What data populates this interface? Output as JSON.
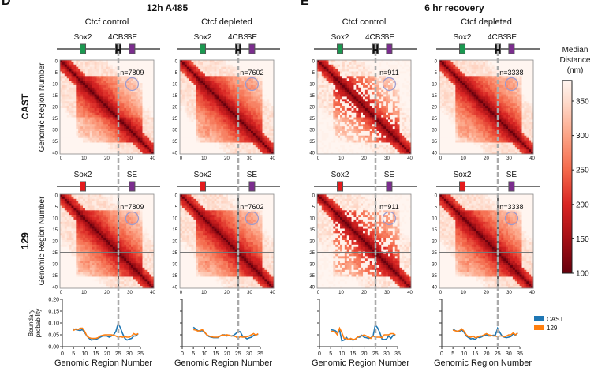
{
  "panel_letters": {
    "left": "D",
    "right": "E"
  },
  "group_titles": {
    "left": "12h A485",
    "right": "6 hr recovery"
  },
  "columns": [
    {
      "condition": "Ctcf control",
      "group": "12h A485",
      "n": "n=7809"
    },
    {
      "condition": "Ctcf depleted",
      "group": "12h A485",
      "n": "n=7602"
    },
    {
      "condition": "Ctcf control",
      "group": "6 hr recovery",
      "n": "n=911"
    },
    {
      "condition": "Ctcf depleted",
      "group": "6 hr recovery",
      "n": "n=3338"
    }
  ],
  "row_labels": {
    "cast": "CAST",
    "g129": "129"
  },
  "heatmap_ylabel": "Genomic Region Number",
  "tracks": {
    "cast": [
      {
        "label": "Sox2",
        "region": 9.5,
        "color": "#1a9850"
      },
      {
        "label": "4CBS",
        "region": 25,
        "color": "#111111"
      },
      {
        "label": "SE",
        "region": 31,
        "color": "#7b2d8e"
      }
    ],
    "g129": [
      {
        "label": "Sox2",
        "region": 9.5,
        "color": "#e41a1c"
      },
      {
        "label": "SE",
        "region": 31,
        "color": "#7b2d8e"
      }
    ]
  },
  "heatmap_axis": {
    "range": [
      0,
      40
    ],
    "y_ticks": [
      0,
      5,
      10,
      15,
      20,
      25,
      30,
      35,
      40
    ],
    "x_ticks": [
      0,
      10,
      20,
      30,
      40
    ]
  },
  "boundary_marker_region": 25,
  "loop_circle": {
    "x_region": 31,
    "y_region": 10,
    "color": "#9a9ad0"
  },
  "colorbar": {
    "title_lines": [
      "Median",
      "Distance",
      "(nm)"
    ],
    "ticks": [
      350,
      300,
      250,
      200,
      150,
      100
    ],
    "range": [
      100,
      380
    ],
    "stops": [
      [
        100,
        "#67000d"
      ],
      [
        150,
        "#a50f15"
      ],
      [
        200,
        "#d92523"
      ],
      [
        250,
        "#f4694b"
      ],
      [
        300,
        "#fca486"
      ],
      [
        350,
        "#fedccd"
      ],
      [
        380,
        "#fff5f0"
      ]
    ]
  },
  "line_axis": {
    "ylabel": [
      "Boundary",
      "probability"
    ],
    "xlabel": "Genomic Region Number",
    "y_ticks": [
      "0.00",
      "0.05",
      "0.10",
      "0.15",
      "0.20"
    ],
    "x_ticks": [
      0,
      5,
      10,
      15,
      20,
      25,
      30,
      35
    ],
    "ylim": [
      0,
      0.2
    ],
    "xlim": [
      0,
      35
    ]
  },
  "legend": [
    {
      "label": "CAST",
      "color": "#1f77b4"
    },
    {
      "label": "129",
      "color": "#ff7f0e"
    }
  ],
  "chart_data": [
    {
      "type": "line",
      "column": 0,
      "title": "Ctcf control",
      "x": [
        5,
        6,
        7,
        8,
        9,
        10,
        11,
        12,
        13,
        14,
        15,
        16,
        17,
        18,
        19,
        20,
        21,
        22,
        23,
        24,
        25,
        26,
        27,
        28,
        29,
        30,
        31,
        32,
        33,
        34
      ],
      "series": [
        {
          "name": "CAST",
          "values": [
            0.075,
            0.072,
            0.07,
            0.068,
            0.072,
            0.06,
            0.045,
            0.035,
            0.028,
            0.03,
            0.03,
            0.035,
            0.04,
            0.045,
            0.045,
            0.045,
            0.04,
            0.045,
            0.05,
            0.065,
            0.098,
            0.08,
            0.055,
            0.035,
            0.028,
            0.032,
            0.035,
            0.045,
            0.045,
            0.055
          ]
        },
        {
          "name": "129",
          "values": [
            0.068,
            0.075,
            0.072,
            0.078,
            0.078,
            0.065,
            0.045,
            0.038,
            0.035,
            0.035,
            0.035,
            0.038,
            0.045,
            0.048,
            0.05,
            0.05,
            0.05,
            0.05,
            0.048,
            0.045,
            0.04,
            0.042,
            0.04,
            0.042,
            0.04,
            0.04,
            0.045,
            0.055,
            0.05,
            0.055
          ]
        }
      ]
    },
    {
      "type": "line",
      "column": 1,
      "title": "Ctcf depleted",
      "x": [
        5,
        6,
        7,
        8,
        9,
        10,
        11,
        12,
        13,
        14,
        15,
        16,
        17,
        18,
        19,
        20,
        21,
        22,
        23,
        24,
        25,
        26,
        27,
        28,
        29,
        30,
        31,
        32,
        33,
        34
      ],
      "series": [
        {
          "name": "CAST",
          "values": [
            0.082,
            0.075,
            0.068,
            0.066,
            0.068,
            0.06,
            0.05,
            0.043,
            0.04,
            0.038,
            0.038,
            0.038,
            0.045,
            0.05,
            0.05,
            0.045,
            0.048,
            0.045,
            0.048,
            0.055,
            0.065,
            0.063,
            0.045,
            0.04,
            0.033,
            0.037,
            0.04,
            0.047,
            0.05,
            0.052
          ]
        },
        {
          "name": "129",
          "values": [
            0.072,
            0.07,
            0.066,
            0.068,
            0.072,
            0.062,
            0.05,
            0.045,
            0.042,
            0.04,
            0.04,
            0.04,
            0.045,
            0.05,
            0.048,
            0.05,
            0.048,
            0.045,
            0.045,
            0.042,
            0.035,
            0.042,
            0.04,
            0.04,
            0.042,
            0.045,
            0.05,
            0.055,
            0.048,
            0.055
          ]
        }
      ]
    },
    {
      "type": "line",
      "column": 2,
      "title": "Ctcf control",
      "x": [
        5,
        6,
        7,
        8,
        9,
        10,
        11,
        12,
        13,
        14,
        15,
        16,
        17,
        18,
        19,
        20,
        21,
        22,
        23,
        24,
        25,
        26,
        27,
        28,
        29,
        30,
        31,
        32,
        33,
        34
      ],
      "series": [
        {
          "name": "CAST",
          "values": [
            0.072,
            0.07,
            0.068,
            0.06,
            0.07,
            0.025,
            0.028,
            0.04,
            0.03,
            0.03,
            0.028,
            0.03,
            0.04,
            0.04,
            0.048,
            0.04,
            0.038,
            0.035,
            0.038,
            0.045,
            0.092,
            0.08,
            0.06,
            0.032,
            0.03,
            0.032,
            0.045,
            0.035,
            0.048,
            0.048
          ]
        },
        {
          "name": "129",
          "values": [
            0.065,
            0.065,
            0.062,
            0.05,
            0.078,
            0.06,
            0.035,
            0.035,
            0.03,
            0.035,
            0.03,
            0.032,
            0.04,
            0.045,
            0.045,
            0.05,
            0.045,
            0.04,
            0.035,
            0.045,
            0.04,
            0.04,
            0.04,
            0.038,
            0.05,
            0.05,
            0.05,
            0.055,
            0.055,
            0.05
          ]
        }
      ]
    },
    {
      "type": "line",
      "column": 3,
      "title": "Ctcf depleted",
      "x": [
        5,
        6,
        7,
        8,
        9,
        10,
        11,
        12,
        13,
        14,
        15,
        16,
        17,
        18,
        19,
        20,
        21,
        22,
        23,
        24,
        25,
        26,
        27,
        28,
        29,
        30,
        31,
        32,
        33,
        34
      ],
      "series": [
        {
          "name": "CAST",
          "values": [
            0.075,
            0.068,
            0.065,
            0.065,
            0.07,
            0.06,
            0.045,
            0.038,
            0.033,
            0.035,
            0.03,
            0.04,
            0.038,
            0.042,
            0.048,
            0.05,
            0.045,
            0.045,
            0.048,
            0.048,
            0.078,
            0.06,
            0.045,
            0.04,
            0.038,
            0.04,
            0.043,
            0.055,
            0.048,
            0.058
          ]
        },
        {
          "name": "129",
          "values": [
            0.07,
            0.067,
            0.065,
            0.068,
            0.075,
            0.065,
            0.05,
            0.042,
            0.04,
            0.045,
            0.038,
            0.04,
            0.045,
            0.045,
            0.05,
            0.055,
            0.05,
            0.048,
            0.045,
            0.045,
            0.042,
            0.045,
            0.045,
            0.042,
            0.045,
            0.05,
            0.05,
            0.058,
            0.05,
            0.058
          ]
        }
      ]
    },
    {
      "type": "heatmap",
      "column": 0,
      "allele": "CAST",
      "n": "n=7809",
      "value": "median distance (nm)",
      "domain_boundary": 25
    },
    {
      "type": "heatmap",
      "column": 1,
      "allele": "CAST",
      "n": "n=7602",
      "value": "median distance (nm)",
      "domain_boundary": 25
    },
    {
      "type": "heatmap",
      "column": 2,
      "allele": "CAST",
      "n": "n=911",
      "value": "median distance (nm)",
      "domain_boundary": 25
    },
    {
      "type": "heatmap",
      "column": 3,
      "allele": "CAST",
      "n": "n=3338",
      "value": "median distance (nm)",
      "domain_boundary": 25
    },
    {
      "type": "heatmap",
      "column": 0,
      "allele": "129",
      "n": "n=7809",
      "value": "median distance (nm)"
    },
    {
      "type": "heatmap",
      "column": 1,
      "allele": "129",
      "n": "n=7602",
      "value": "median distance (nm)"
    },
    {
      "type": "heatmap",
      "column": 2,
      "allele": "129",
      "n": "n=911",
      "value": "median distance (nm)"
    },
    {
      "type": "heatmap",
      "column": 3,
      "allele": "129",
      "n": "n=3338",
      "value": "median distance (nm)"
    }
  ]
}
